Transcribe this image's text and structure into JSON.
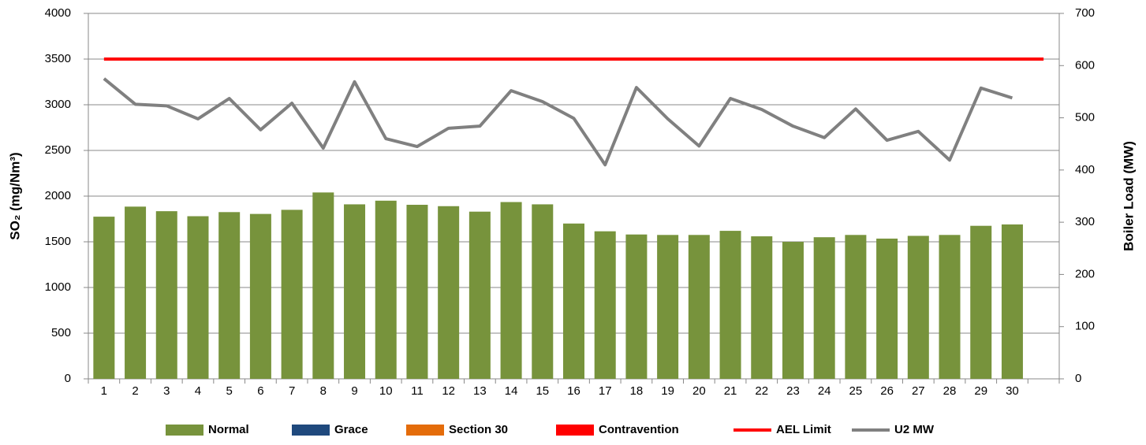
{
  "chart_data": {
    "type": "bar",
    "y_axis_title": "SO₂ (mg/Nm³)",
    "y2_axis_title": "Boiler Load (MW)",
    "categories": [
      "1",
      "2",
      "3",
      "4",
      "5",
      "6",
      "7",
      "8",
      "9",
      "10",
      "11",
      "12",
      "13",
      "14",
      "15",
      "16",
      "17",
      "18",
      "19",
      "20",
      "21",
      "22",
      "23",
      "24",
      "25",
      "26",
      "27",
      "28",
      "29",
      "30",
      null
    ],
    "ylim": [
      0,
      4000
    ],
    "yticks": [
      0,
      500,
      1000,
      1500,
      2000,
      2500,
      3000,
      3500,
      4000
    ],
    "y2lim": [
      0,
      700
    ],
    "y2ticks": [
      0,
      100,
      200,
      300,
      400,
      500,
      600,
      700
    ],
    "grid": true,
    "legend": "bottom",
    "series": [
      {
        "name": "Normal",
        "type": "bar",
        "color": "#77933c",
        "values": [
          1775,
          1885,
          1835,
          1780,
          1825,
          1805,
          1850,
          2040,
          1910,
          1950,
          1905,
          1890,
          1830,
          1935,
          1910,
          1700,
          1615,
          1580,
          1575,
          1575,
          1620,
          1560,
          1500,
          1550,
          1575,
          1535,
          1565,
          1575,
          1675,
          1690,
          null
        ]
      },
      {
        "name": "Grace",
        "type": "bar",
        "color": "#1f497d",
        "values": [
          0,
          0,
          0,
          0,
          0,
          0,
          0,
          0,
          0,
          0,
          0,
          0,
          0,
          0,
          0,
          0,
          0,
          0,
          0,
          0,
          0,
          0,
          0,
          0,
          0,
          0,
          0,
          0,
          0,
          0,
          null
        ]
      },
      {
        "name": "Section 30",
        "type": "bar",
        "color": "#e46c0a",
        "values": [
          0,
          0,
          0,
          0,
          0,
          0,
          0,
          0,
          0,
          0,
          0,
          0,
          0,
          0,
          0,
          0,
          0,
          0,
          0,
          0,
          0,
          0,
          0,
          0,
          0,
          0,
          0,
          0,
          0,
          0,
          null
        ]
      },
      {
        "name": "Contravention",
        "type": "bar",
        "color": "#ff0000",
        "values": [
          0,
          0,
          0,
          0,
          0,
          0,
          0,
          0,
          0,
          0,
          0,
          0,
          0,
          0,
          0,
          0,
          0,
          0,
          0,
          0,
          0,
          0,
          0,
          0,
          0,
          0,
          0,
          0,
          0,
          0,
          null
        ]
      },
      {
        "name": "AEL Limit",
        "type": "line",
        "color": "#ff0000",
        "values": [
          3500,
          3500,
          3500,
          3500,
          3500,
          3500,
          3500,
          3500,
          3500,
          3500,
          3500,
          3500,
          3500,
          3500,
          3500,
          3500,
          3500,
          3500,
          3500,
          3500,
          3500,
          3500,
          3500,
          3500,
          3500,
          3500,
          3500,
          3500,
          3500,
          3500,
          3500
        ]
      },
      {
        "name": "U2 MW",
        "type": "line",
        "axis": "y2",
        "color": "#808080",
        "values": [
          575,
          526,
          523,
          498,
          537,
          477,
          528,
          442,
          569,
          460,
          445,
          480,
          484,
          552,
          531,
          499,
          410,
          558,
          498,
          446,
          537,
          516,
          484,
          462,
          517,
          457,
          474,
          419,
          557,
          538,
          null
        ]
      }
    ]
  }
}
